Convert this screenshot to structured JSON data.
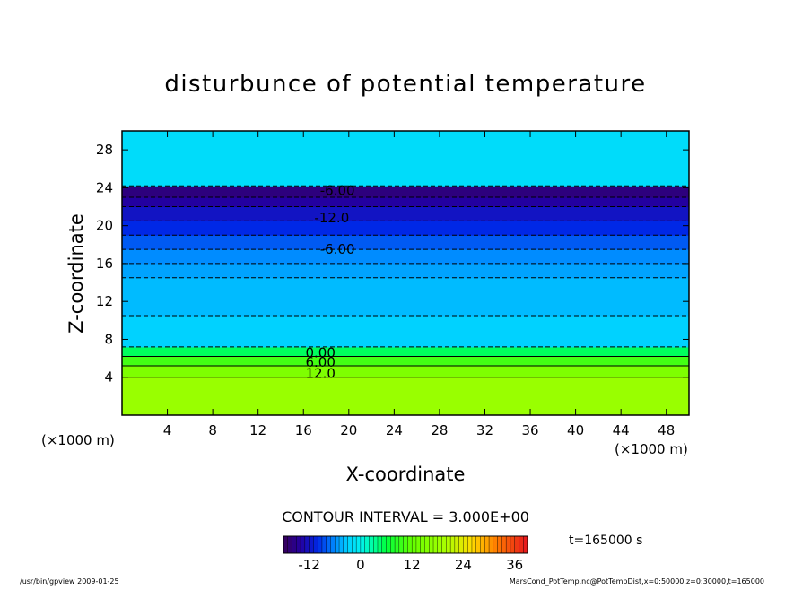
{
  "chart_data": {
    "type": "heatmap",
    "title": "disturbunce of potential temperature",
    "xlabel": "X-coordinate",
    "ylabel": "Z-coordinate",
    "x_unit_left": "(×1000 m)",
    "x_unit_right": "(×1000 m)",
    "xlim": [
      0,
      50
    ],
    "ylim": [
      0,
      30
    ],
    "x_ticks": [
      "4",
      "8",
      "12",
      "16",
      "20",
      "24",
      "28",
      "32",
      "36",
      "40",
      "44",
      "48"
    ],
    "y_ticks": [
      "4",
      "8",
      "12",
      "16",
      "20",
      "24",
      "28"
    ],
    "x_tick_values": [
      4,
      8,
      12,
      16,
      20,
      24,
      28,
      32,
      36,
      40,
      44,
      48
    ],
    "y_tick_values": [
      4,
      8,
      12,
      16,
      20,
      24,
      28
    ],
    "contour_interval_text": "CONTOUR INTERVAL = 3.000E+00",
    "contour_interval": 3.0,
    "contour_labels": [
      {
        "text": "-6.00",
        "x": 19.0,
        "z": 23.7
      },
      {
        "text": "-12.0",
        "x": 18.5,
        "z": 20.8
      },
      {
        "text": "-6.00",
        "x": 19.0,
        "z": 17.5
      },
      {
        "text": "0.00",
        "x": 17.5,
        "z": 6.6
      },
      {
        "text": "6.00",
        "x": 17.5,
        "z": 5.6
      },
      {
        "text": "12.0",
        "x": 17.5,
        "z": 4.4
      }
    ],
    "value_bands": [
      {
        "z0": 0.0,
        "z1": 4.0,
        "value": 18
      },
      {
        "z0": 4.0,
        "z1": 5.2,
        "value": 15
      },
      {
        "z0": 5.2,
        "z1": 6.2,
        "value": 10
      },
      {
        "z0": 6.2,
        "z1": 7.2,
        "value": 5
      },
      {
        "z0": 7.2,
        "z1": 10.5,
        "value": -3
      },
      {
        "z0": 10.5,
        "z1": 14.5,
        "value": -4
      },
      {
        "z0": 14.5,
        "z1": 16.0,
        "value": -5
      },
      {
        "z0": 16.0,
        "z1": 17.5,
        "value": -6
      },
      {
        "z0": 17.5,
        "z1": 19.0,
        "value": -8
      },
      {
        "z0": 19.0,
        "z1": 20.5,
        "value": -10
      },
      {
        "z0": 20.5,
        "z1": 22.0,
        "value": -12
      },
      {
        "z0": 22.0,
        "z1": 23.0,
        "value": -14
      },
      {
        "z0": 23.0,
        "z1": 24.2,
        "value": -16
      },
      {
        "z0": 24.2,
        "z1": 30.0,
        "value": -2
      }
    ],
    "colorbar": {
      "min": -18,
      "max": 39,
      "ticks": [
        "-12",
        "0",
        "12",
        "24",
        "36"
      ],
      "tick_values": [
        -12,
        0,
        12,
        24,
        36
      ]
    },
    "time_label": "t=165000 s"
  },
  "footer": {
    "left": "/usr/bin/gpview  2009-01-25",
    "right": "MarsCond_PotTemp.nc@PotTempDist,x=0:50000,z=0:30000,t=165000"
  }
}
